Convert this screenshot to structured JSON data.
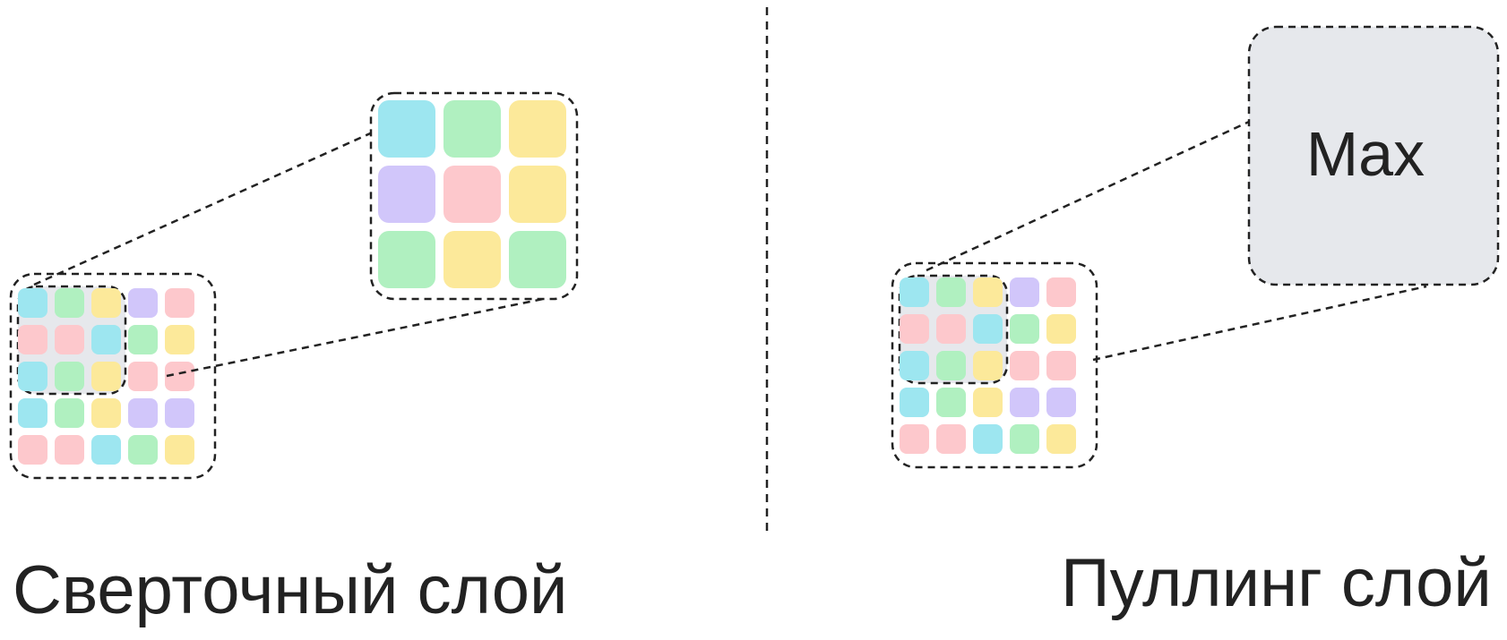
{
  "colors": {
    "cyan": "#9de6f0",
    "green": "#b0f0c0",
    "yellow": "#fce99a",
    "purple": "#d1c6fa",
    "pink": "#fdc8cc",
    "window": "#e6e8ec",
    "stroke": "#222222"
  },
  "left_panel": {
    "caption": "Сверточный слой",
    "input_grid": [
      [
        "cyan",
        "green",
        "yellow",
        "purple",
        "pink"
      ],
      [
        "pink",
        "pink",
        "cyan",
        "green",
        "yellow"
      ],
      [
        "cyan",
        "green",
        "yellow",
        "pink",
        "pink"
      ],
      [
        "cyan",
        "green",
        "yellow",
        "purple",
        "purple"
      ],
      [
        "pink",
        "pink",
        "cyan",
        "green",
        "yellow"
      ]
    ],
    "zoom_grid": [
      [
        "cyan",
        "green",
        "yellow"
      ],
      [
        "purple",
        "pink",
        "yellow"
      ],
      [
        "green",
        "yellow",
        "green"
      ]
    ]
  },
  "right_panel": {
    "caption": "Пуллинг слой",
    "operation_label": "Max",
    "input_grid": [
      [
        "cyan",
        "green",
        "yellow",
        "purple",
        "pink"
      ],
      [
        "pink",
        "pink",
        "cyan",
        "green",
        "yellow"
      ],
      [
        "cyan",
        "green",
        "yellow",
        "pink",
        "pink"
      ],
      [
        "cyan",
        "green",
        "yellow",
        "purple",
        "purple"
      ],
      [
        "pink",
        "pink",
        "cyan",
        "green",
        "yellow"
      ]
    ]
  }
}
